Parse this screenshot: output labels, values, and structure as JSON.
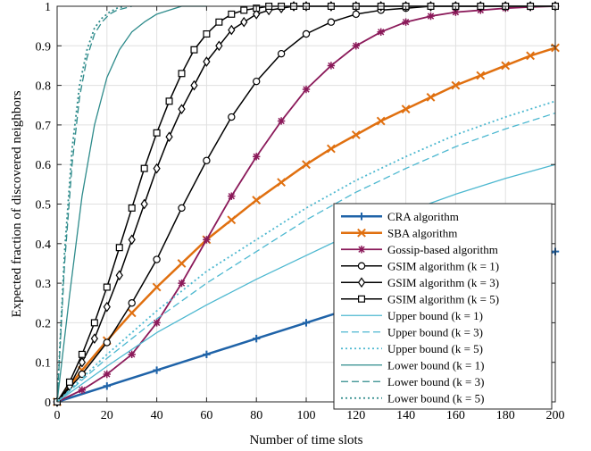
{
  "chart_data": {
    "type": "line",
    "title": "",
    "xlabel": "Number of time slots",
    "ylabel": "Expected fraction of discovered neighbors",
    "xlim": [
      0,
      200
    ],
    "ylim": [
      0,
      1
    ],
    "xticks": [
      0,
      20,
      40,
      60,
      80,
      100,
      120,
      140,
      160,
      180,
      200
    ],
    "yticks": [
      0,
      0.1,
      0.2,
      0.3,
      0.4,
      0.5,
      0.6,
      0.7,
      0.8,
      0.9,
      1
    ],
    "ytick_labels": [
      "0",
      "0.1",
      "0.2",
      "0.3",
      "0.4",
      "0.5",
      "0.6",
      "0.7",
      "0.8",
      "0.9",
      "1"
    ],
    "grid": true,
    "legend_position": "bottom-right",
    "series": [
      {
        "name": "CRA algorithm",
        "color": "#1f63a8",
        "dash": "solid",
        "marker": "plus",
        "width": 2.5,
        "x": [
          0,
          20,
          40,
          60,
          80,
          100,
          120,
          140,
          160,
          180,
          200
        ],
        "y": [
          0,
          0.04,
          0.08,
          0.12,
          0.16,
          0.2,
          0.24,
          0.27,
          0.31,
          0.345,
          0.38
        ]
      },
      {
        "name": "SBA algorithm",
        "color": "#e07010",
        "dash": "solid",
        "marker": "x",
        "width": 2.5,
        "x": [
          0,
          10,
          20,
          30,
          40,
          50,
          60,
          70,
          80,
          90,
          100,
          110,
          120,
          130,
          140,
          150,
          160,
          170,
          180,
          190,
          200
        ],
        "y": [
          0,
          0.08,
          0.155,
          0.225,
          0.29,
          0.35,
          0.41,
          0.46,
          0.51,
          0.555,
          0.6,
          0.64,
          0.675,
          0.71,
          0.74,
          0.77,
          0.8,
          0.825,
          0.85,
          0.875,
          0.895
        ]
      },
      {
        "name": "Gossip-based algorithm",
        "color": "#8b1a5a",
        "dash": "solid",
        "marker": "asterisk",
        "width": 1.8,
        "x": [
          0,
          10,
          20,
          30,
          40,
          50,
          60,
          70,
          80,
          90,
          100,
          110,
          120,
          130,
          140,
          150,
          160,
          170,
          180,
          190,
          200
        ],
        "y": [
          0,
          0.03,
          0.07,
          0.12,
          0.2,
          0.3,
          0.41,
          0.52,
          0.62,
          0.71,
          0.79,
          0.85,
          0.9,
          0.935,
          0.96,
          0.975,
          0.985,
          0.99,
          0.995,
          0.998,
          1.0
        ]
      },
      {
        "name": "GSIM algorithm (k = 1)",
        "color": "#000000",
        "dash": "solid",
        "marker": "circle",
        "width": 1.5,
        "x": [
          0,
          10,
          20,
          30,
          40,
          50,
          60,
          70,
          80,
          90,
          100,
          110,
          120,
          130,
          140,
          150,
          160,
          170,
          180,
          190,
          200
        ],
        "y": [
          0,
          0.07,
          0.15,
          0.25,
          0.36,
          0.49,
          0.61,
          0.72,
          0.81,
          0.88,
          0.93,
          0.96,
          0.98,
          0.99,
          0.995,
          1.0,
          1.0,
          1.0,
          1.0,
          1.0,
          1.0
        ]
      },
      {
        "name": "GSIM algorithm (k = 3)",
        "color": "#000000",
        "dash": "solid",
        "marker": "diamond",
        "width": 1.5,
        "x": [
          0,
          5,
          10,
          15,
          20,
          25,
          30,
          35,
          40,
          45,
          50,
          55,
          60,
          65,
          70,
          75,
          80,
          85,
          90,
          95,
          100,
          110,
          120,
          130,
          140,
          150,
          160,
          170,
          180,
          190,
          200
        ],
        "y": [
          0,
          0.04,
          0.1,
          0.16,
          0.24,
          0.32,
          0.41,
          0.5,
          0.59,
          0.67,
          0.74,
          0.8,
          0.86,
          0.9,
          0.94,
          0.96,
          0.98,
          0.99,
          0.995,
          1.0,
          1.0,
          1.0,
          1.0,
          1.0,
          1.0,
          1.0,
          1.0,
          1.0,
          1.0,
          1.0,
          1.0
        ]
      },
      {
        "name": "GSIM algorithm (k = 5)",
        "color": "#000000",
        "dash": "solid",
        "marker": "square",
        "width": 1.5,
        "x": [
          0,
          5,
          10,
          15,
          20,
          25,
          30,
          35,
          40,
          45,
          50,
          55,
          60,
          65,
          70,
          75,
          80,
          85,
          90,
          95,
          100,
          110,
          120,
          130,
          140,
          150,
          160,
          170,
          180,
          190,
          200
        ],
        "y": [
          0,
          0.05,
          0.12,
          0.2,
          0.29,
          0.39,
          0.49,
          0.59,
          0.68,
          0.76,
          0.83,
          0.89,
          0.93,
          0.96,
          0.98,
          0.99,
          0.995,
          1.0,
          1.0,
          1.0,
          1.0,
          1.0,
          1.0,
          1.0,
          1.0,
          1.0,
          1.0,
          1.0,
          1.0,
          1.0,
          1.0
        ]
      },
      {
        "name": "Upper bound (k = 1)",
        "color": "#4db8d0",
        "dash": "solid",
        "marker": "none",
        "width": 1.3,
        "x": [
          0,
          20,
          40,
          60,
          80,
          100,
          120,
          140,
          160,
          180,
          200
        ],
        "y": [
          0,
          0.09,
          0.175,
          0.245,
          0.31,
          0.37,
          0.43,
          0.48,
          0.525,
          0.565,
          0.6
        ]
      },
      {
        "name": "Upper bound (k = 3)",
        "color": "#4db8d0",
        "dash": "dashed",
        "marker": "none",
        "width": 1.3,
        "x": [
          0,
          20,
          40,
          60,
          80,
          100,
          120,
          140,
          160,
          180,
          200
        ],
        "y": [
          0,
          0.11,
          0.21,
          0.3,
          0.38,
          0.46,
          0.53,
          0.59,
          0.645,
          0.69,
          0.73
        ]
      },
      {
        "name": "Upper bound (k = 5)",
        "color": "#4db8d0",
        "dash": "dotted",
        "marker": "none",
        "width": 1.8,
        "x": [
          0,
          20,
          40,
          60,
          80,
          100,
          120,
          140,
          160,
          180,
          200
        ],
        "y": [
          0,
          0.12,
          0.23,
          0.33,
          0.41,
          0.49,
          0.56,
          0.62,
          0.675,
          0.72,
          0.76
        ]
      },
      {
        "name": "Lower bound (k = 1)",
        "color": "#2e8b8b",
        "dash": "solid",
        "marker": "none",
        "width": 1.3,
        "x": [
          0,
          5,
          10,
          15,
          20,
          25,
          30,
          35,
          40,
          45,
          50,
          60
        ],
        "y": [
          0,
          0.27,
          0.52,
          0.7,
          0.82,
          0.89,
          0.935,
          0.96,
          0.98,
          0.99,
          1.0,
          1.0
        ]
      },
      {
        "name": "Lower bound (k = 3)",
        "color": "#2e8b8b",
        "dash": "dashed",
        "marker": "none",
        "width": 1.3,
        "x": [
          0,
          3,
          6,
          9,
          12,
          15,
          18,
          21,
          24,
          27,
          30
        ],
        "y": [
          0,
          0.35,
          0.6,
          0.77,
          0.87,
          0.93,
          0.96,
          0.98,
          0.99,
          0.995,
          1.0
        ]
      },
      {
        "name": "Lower bound (k = 5)",
        "color": "#2e8b8b",
        "dash": "dotted",
        "marker": "none",
        "width": 1.8,
        "x": [
          0,
          3,
          6,
          9,
          12,
          15,
          18,
          21,
          24,
          27
        ],
        "y": [
          0,
          0.38,
          0.64,
          0.8,
          0.89,
          0.945,
          0.97,
          0.985,
          0.995,
          1.0
        ]
      }
    ]
  }
}
